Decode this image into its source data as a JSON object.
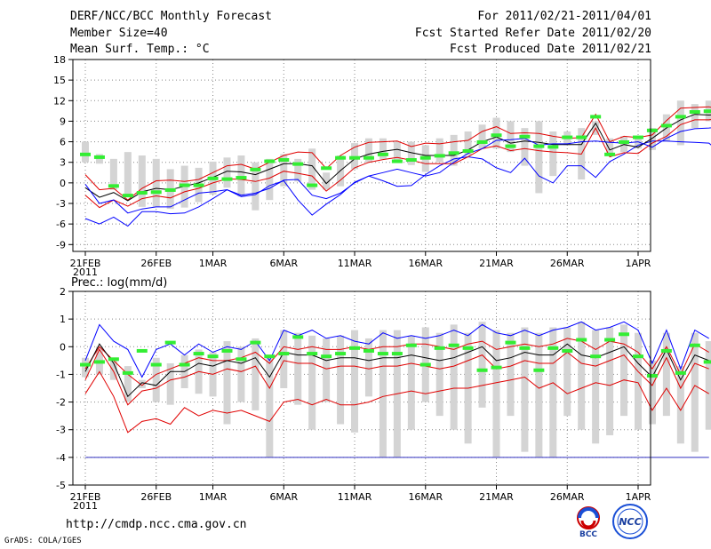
{
  "header": {
    "title": "DERF/NCC/BCC Monthly Forecast",
    "member_size": "Member Size=40",
    "variable": "Mean Surf. Temp.: °C",
    "period": "For 2011/02/21-2011/04/01",
    "started": "Fcst Started Refer Date 2011/02/20",
    "produced": "Fcst Produced Date 2011/02/21"
  },
  "footer": {
    "url": "http://cmdp.ncc.cma.gov.cn",
    "grads": "GrADS: COLA/IGES",
    "logo_bcc": "BCC",
    "logo_ncc": "NCC"
  },
  "colors": {
    "max": "#0000ff",
    "spread": "#e00000",
    "mean": "#000000",
    "obs": "#33ee33",
    "box": "#d4d4d4"
  },
  "chart_data": [
    {
      "type": "line",
      "title": "Mean Surf. Temp.: °C",
      "x_tick_labels": [
        "21FEB",
        "26FEB",
        "1MAR",
        "6MAR",
        "11MAR",
        "16MAR",
        "21MAR",
        "26MAR",
        "1APR"
      ],
      "x_year_label": "2011",
      "ylim": [
        -10,
        18
      ],
      "yticks": [
        -9,
        -6,
        -3,
        0,
        3,
        6,
        9,
        12,
        15,
        18
      ],
      "series": [
        {
          "name": "max",
          "color": "#0000ff",
          "values": [
            -5.2,
            -6,
            -5,
            -6.3,
            -4.2,
            -4.2,
            -4.5,
            -4.4,
            -3.5,
            -2.3,
            -1,
            -2,
            -1.7,
            -0.4,
            0.3,
            -2.5,
            -4.7,
            -3.1,
            -1.7,
            0.1,
            1,
            0.3,
            -0.5,
            -0.4,
            1.2,
            2.5,
            3.5,
            3.8,
            3.5,
            2.2,
            1.5,
            3.6,
            1,
            0,
            2.5,
            2.5,
            0.8,
            3.1,
            4.2,
            5.5,
            6.1,
            6.1,
            6,
            5.9,
            5.8,
            4
          ]
        },
        {
          "name": "upper",
          "color": "#e00000",
          "values": [
            1.2,
            -1,
            -0.8,
            -2.5,
            -0.8,
            0.3,
            0.4,
            0.2,
            0.5,
            1.5,
            2.5,
            2.7,
            2,
            3,
            4,
            4.5,
            4.4,
            2.1,
            4,
            5.2,
            5.9,
            6,
            6.1,
            5.3,
            5.8,
            5.7,
            6,
            6.2,
            7.5,
            8.2,
            7.2,
            7.3,
            7.2,
            6.8,
            6.5,
            6.6,
            10,
            6,
            6.8,
            6.6,
            7,
            9.1,
            10.9,
            11,
            11.1,
            10.6
          ]
        },
        {
          "name": "mean",
          "color": "#000000",
          "values": [
            -0.7,
            -2.1,
            -1.4,
            -2.6,
            -1.3,
            -0.8,
            -1,
            -0.5,
            0,
            0.8,
            1.7,
            1.6,
            1.2,
            2,
            2.8,
            2.8,
            2.5,
            -0.1,
            1.8,
            3.5,
            4.2,
            4.6,
            4.9,
            4.4,
            4,
            4,
            4,
            4.8,
            6,
            6.7,
            5.8,
            6.1,
            5.9,
            5.6,
            5.6,
            5.6,
            8.7,
            4.8,
            5.6,
            5.2,
            6.5,
            8,
            9.2,
            10,
            9.9,
            10
          ]
        },
        {
          "name": "lower",
          "color": "#e00000",
          "values": [
            -1.8,
            -3.6,
            -2.5,
            -3.4,
            -2.3,
            -1.9,
            -2.2,
            -1.3,
            -0.8,
            0,
            0.6,
            0.5,
            0.2,
            0.7,
            1.7,
            1.4,
            1,
            -1.2,
            0.4,
            2.2,
            3,
            3.4,
            3.7,
            3.3,
            2.8,
            2.8,
            2.8,
            3.8,
            5,
            5.4,
            4.7,
            5,
            4.7,
            4.5,
            4.4,
            4.2,
            8,
            3.8,
            4.4,
            4.3,
            5.8,
            6.8,
            8.5,
            9.2,
            9.2,
            9.6
          ]
        },
        {
          "name": "min",
          "color": "#0000ff",
          "values": [
            -0.2,
            -3,
            -2.5,
            -4.4,
            -3.8,
            -3.5,
            -3.5,
            -2.5,
            -1.5,
            -1.3,
            -1,
            -1.8,
            -1.5,
            -0.8,
            0.4,
            0.5,
            -1.8,
            -2.3,
            -1.5,
            0,
            1,
            1.5,
            2,
            1.5,
            1,
            1.5,
            3,
            4.3,
            5,
            6.2,
            6.3,
            6.5,
            5.5,
            5.7,
            5.7,
            6,
            6.1,
            5.9,
            5.8,
            6,
            5.2,
            6.5,
            7.5,
            7.9,
            8,
            8.2
          ]
        }
      ],
      "box_series": [
        {
          "name": "range",
          "low": [
            3,
            2.8,
            -1,
            -2,
            -3.5,
            -3.5,
            -3.8,
            -3.6,
            -2.8,
            -1.7,
            -0.7,
            -2,
            -4,
            -2.5,
            -0.5,
            0.2,
            -1,
            -1,
            -0.5,
            2,
            3,
            3.5,
            3,
            2.6,
            1.6,
            3,
            2.5,
            4,
            5,
            5,
            4.5,
            2.5,
            -1.5,
            1,
            5.5,
            0.5,
            7,
            4,
            4.5,
            5,
            4.8,
            6,
            5.5,
            8,
            9,
            5.5
          ],
          "high": [
            6,
            4.2,
            3.5,
            4.5,
            4,
            3.5,
            2,
            2.5,
            2.2,
            3.1,
            3.7,
            4,
            3,
            3.5,
            4.2,
            3.5,
            5,
            1.5,
            4,
            5.8,
            6.5,
            6.5,
            6,
            6,
            5.5,
            6.5,
            7,
            7.5,
            8.5,
            9.5,
            9,
            8,
            9,
            7.5,
            7.5,
            8,
            9,
            6.5,
            6.8,
            6.8,
            8,
            10,
            12,
            11.5,
            12,
            12.5
          ]
        },
        {
          "name": "obs",
          "low": [
            4,
            3.6,
            -0.6,
            -2,
            -1.6,
            -1.5,
            -1.2,
            -0.5,
            -0.5,
            0.5,
            0.4,
            0.6,
            1.8,
            3,
            3.2,
            2.6,
            -0.5,
            2,
            3.5,
            3.5,
            3.5,
            4,
            3,
            3.2,
            3.5,
            3.8,
            4.2,
            4.5,
            5.8,
            6.8,
            5.2,
            6.6,
            5.2,
            5.1,
            6.5,
            6.5,
            9.5,
            4,
            5.8,
            6.5,
            7.5,
            8.2,
            9.5,
            10.2,
            10.3,
            10.8
          ],
          "high": [
            4.3,
            3.9,
            -0.3,
            -1.7,
            -1.3,
            -1.2,
            -0.9,
            -0.2,
            -0.2,
            0.8,
            0.7,
            0.9,
            2.1,
            3.3,
            3.5,
            2.9,
            -0.2,
            2.3,
            3.8,
            3.8,
            3.8,
            4.3,
            3.3,
            3.5,
            3.8,
            4.1,
            4.5,
            4.8,
            6.1,
            7.1,
            5.5,
            6.9,
            5.5,
            5.4,
            6.8,
            6.8,
            9.8,
            4.3,
            6.1,
            6.8,
            7.8,
            8.5,
            9.8,
            10.5,
            10.6,
            11.1
          ]
        }
      ]
    },
    {
      "type": "line",
      "title": "Prec.: log(mm/d)",
      "x_tick_labels": [
        "21FEB",
        "26FEB",
        "1MAR",
        "6MAR",
        "11MAR",
        "16MAR",
        "21MAR",
        "26MAR",
        "1APR"
      ],
      "x_year_label": "2011",
      "ylim": [
        -5,
        2
      ],
      "yticks": [
        -5,
        -4,
        -3,
        -2,
        -1,
        0,
        1,
        2
      ],
      "floor_line": -4,
      "series": [
        {
          "name": "max",
          "color": "#0000ff",
          "values": [
            -0.5,
            0.8,
            0.2,
            -0.1,
            -1.1,
            -0.1,
            0.1,
            -0.3,
            0.1,
            -0.2,
            0,
            -0.1,
            0.2,
            -0.5,
            0.6,
            0.4,
            0.6,
            0.3,
            0.4,
            0.2,
            0.1,
            0.5,
            0.3,
            0.4,
            0.3,
            0.4,
            0.6,
            0.4,
            0.8,
            0.5,
            0.4,
            0.6,
            0.4,
            0.6,
            0.7,
            0.9,
            0.6,
            0.7,
            0.9,
            0.6,
            -0.6,
            0.6,
            -0.8,
            0.6,
            0.3
          ]
        },
        {
          "name": "upper",
          "color": "#e00000",
          "values": [
            -0.8,
            0,
            -0.5,
            -1,
            -1.4,
            -1,
            -0.8,
            -0.6,
            -0.4,
            -0.5,
            -0.5,
            -0.4,
            -0.2,
            -0.6,
            0,
            -0.1,
            0,
            -0.1,
            -0.1,
            0,
            -0.1,
            0,
            0,
            0.1,
            0.1,
            0,
            -0.1,
            0.1,
            0.2,
            -0.1,
            0,
            0.1,
            0,
            0.1,
            0.3,
            0.2,
            -0.1,
            0.2,
            0.1,
            -0.2,
            -0.8,
            0,
            -1,
            0.1,
            -0.2
          ]
        },
        {
          "name": "mean",
          "color": "#000000",
          "values": [
            -0.9,
            0.1,
            -0.6,
            -1.8,
            -1.3,
            -1.4,
            -0.9,
            -0.9,
            -0.6,
            -0.7,
            -0.5,
            -0.6,
            -0.4,
            -1.1,
            -0.2,
            -0.3,
            -0.3,
            -0.5,
            -0.4,
            -0.4,
            -0.5,
            -0.4,
            -0.4,
            -0.3,
            -0.4,
            -0.5,
            -0.4,
            -0.2,
            0,
            -0.5,
            -0.4,
            -0.2,
            -0.3,
            -0.3,
            0.1,
            -0.3,
            -0.4,
            -0.2,
            0,
            -0.6,
            -1.1,
            -0.1,
            -1.2,
            -0.3,
            -0.5
          ]
        },
        {
          "name": "lower",
          "color": "#e00000",
          "values": [
            -1.2,
            -0.1,
            -0.9,
            -2.1,
            -1.6,
            -1.5,
            -1.2,
            -1.1,
            -0.9,
            -1,
            -0.8,
            -0.9,
            -0.7,
            -1.5,
            -0.5,
            -0.6,
            -0.6,
            -0.8,
            -0.7,
            -0.7,
            -0.8,
            -0.7,
            -0.7,
            -0.6,
            -0.7,
            -0.8,
            -0.7,
            -0.5,
            -0.3,
            -0.8,
            -0.7,
            -0.5,
            -0.6,
            -0.6,
            -0.2,
            -0.6,
            -0.7,
            -0.5,
            -0.3,
            -0.9,
            -1.4,
            -0.4,
            -1.5,
            -0.6,
            -0.8
          ]
        },
        {
          "name": "min",
          "color": "#e00000",
          "values": [
            -1.7,
            -0.9,
            -1.8,
            -3.1,
            -2.7,
            -2.6,
            -2.8,
            -2.2,
            -2.5,
            -2.3,
            -2.4,
            -2.3,
            -2.5,
            -2.7,
            -2,
            -1.9,
            -2.1,
            -1.9,
            -2.1,
            -2.1,
            -2,
            -1.8,
            -1.7,
            -1.6,
            -1.7,
            -1.6,
            -1.5,
            -1.5,
            -1.4,
            -1.3,
            -1.2,
            -1.1,
            -1.5,
            -1.3,
            -1.7,
            -1.5,
            -1.3,
            -1.4,
            -1.2,
            -1.3,
            -2.3,
            -1.5,
            -2.3,
            -1.4,
            -1.7
          ]
        }
      ],
      "box_series": [
        {
          "name": "range",
          "low": [
            -1.1,
            -1,
            -1.2,
            -2,
            -1.5,
            -2,
            -2.1,
            -1.5,
            -1.7,
            -1.8,
            -2.8,
            -2,
            -2.3,
            -4,
            -1.5,
            -2.1,
            -3,
            -2,
            -2.8,
            -3.1,
            -1.8,
            -4,
            -4,
            -3,
            -2,
            -2.5,
            -3,
            -3.5,
            -2.2,
            -4,
            -2.5,
            -3.8,
            -4,
            -4,
            -2.5,
            -3,
            -3.5,
            -3.2,
            -2.5,
            -3,
            -2.8,
            -2.5,
            -3.5,
            -3.8,
            -3
          ],
          "high": [
            -0.4,
            0,
            -0.5,
            -0.7,
            -1.2,
            -0.4,
            -0.6,
            -0.3,
            -0.1,
            -0.2,
            0.2,
            0,
            0.3,
            -0.3,
            0.6,
            0.5,
            0.4,
            0.3,
            0.4,
            0.6,
            0.3,
            0.6,
            0.6,
            0.4,
            0.7,
            0.5,
            0.8,
            0.5,
            0.9,
            0.6,
            0.5,
            0.7,
            0.5,
            0.7,
            0.7,
            0.9,
            0.6,
            0.7,
            0.8,
            0.5,
            -0.5,
            0.5,
            -0.7,
            0.5,
            0.2
          ]
        },
        {
          "name": "obs",
          "low": [
            -0.7,
            -0.6,
            -0.5,
            -1,
            -0.2,
            -0.7,
            0.1,
            -0.7,
            -0.3,
            -0.4,
            -0.2,
            -0.5,
            0.1,
            -0.4,
            -0.3,
            0.3,
            -0.3,
            -0.4,
            -0.3,
            -0.1,
            -0.2,
            -0.3,
            -0.3,
            0,
            -0.7,
            -0.1,
            0,
            -0.1,
            -0.9,
            -0.8,
            0.1,
            -0.1,
            -0.9,
            -0.1,
            -0.2,
            0.2,
            -0.4,
            0.2,
            0.4,
            -0.4,
            -1.1,
            -0.2,
            -1,
            0,
            -0.6
          ],
          "high": [
            -0.6,
            -0.5,
            -0.4,
            -0.9,
            -0.1,
            -0.6,
            0.2,
            -0.6,
            -0.2,
            -0.3,
            -0.1,
            -0.4,
            0.2,
            -0.3,
            -0.2,
            0.4,
            -0.2,
            -0.3,
            -0.2,
            0,
            -0.1,
            -0.2,
            -0.2,
            0.1,
            -0.6,
            0,
            0.1,
            0,
            -0.8,
            -0.7,
            0.2,
            0,
            -0.8,
            0,
            -0.1,
            0.3,
            -0.3,
            0.3,
            0.5,
            -0.3,
            -1,
            -0.1,
            -0.9,
            0.1,
            -0.5
          ]
        }
      ]
    }
  ]
}
